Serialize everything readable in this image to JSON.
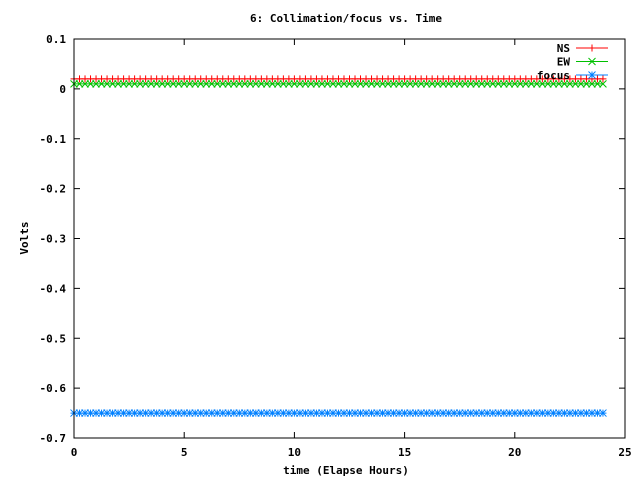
{
  "chart_data": {
    "type": "line",
    "title": "6: Collimation/focus vs. Time",
    "xlabel": "time (Elapse Hours)",
    "ylabel": "Volts",
    "xlim": [
      0,
      25
    ],
    "ylim": [
      -0.7,
      0.1
    ],
    "x_ticks": [
      "0",
      "5",
      "10",
      "15",
      "20",
      "25"
    ],
    "y_ticks": [
      "0.1",
      "0",
      "-0.1",
      "-0.2",
      "-0.3",
      "-0.4",
      "-0.5",
      "-0.6",
      "-0.7"
    ],
    "legend_position": "top-right",
    "grid": false,
    "x_start": 0,
    "x_end": 24,
    "x_step": 0.25,
    "series": [
      {
        "name": "NS",
        "value": 0.02,
        "color": "#ff0000",
        "marker": "plus"
      },
      {
        "name": "EW",
        "value": 0.01,
        "color": "#00c000",
        "marker": "cross"
      },
      {
        "name": "focus",
        "value": -0.65,
        "color": "#0080ff",
        "marker": "star"
      }
    ]
  }
}
